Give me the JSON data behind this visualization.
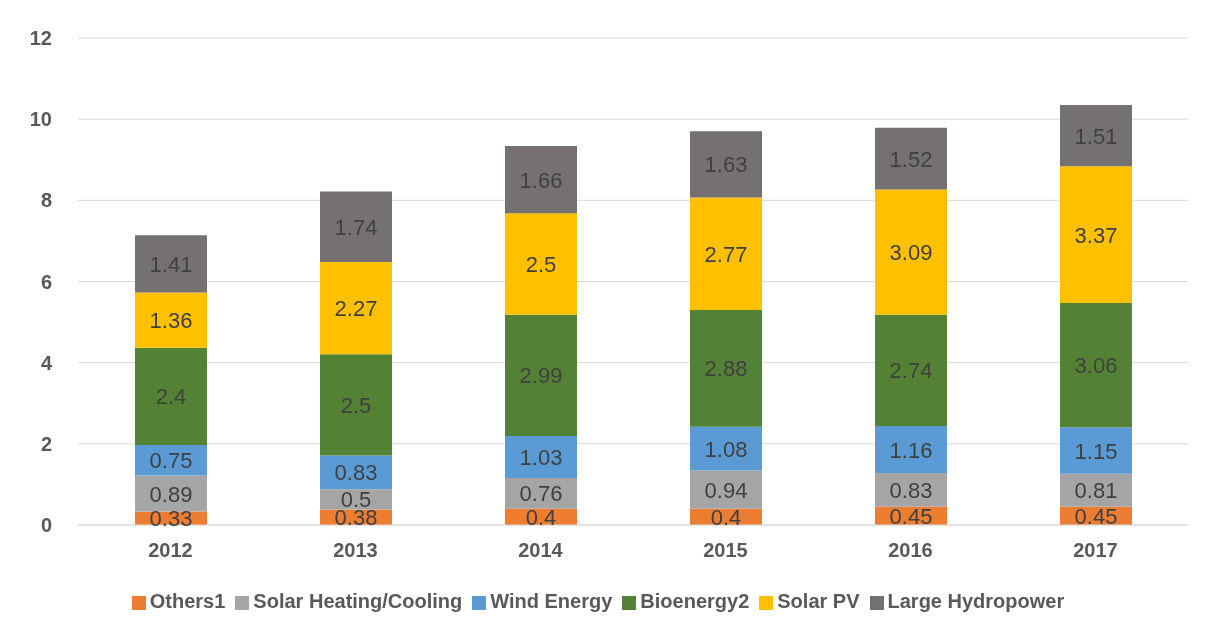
{
  "chart_data": {
    "type": "bar",
    "stacked": true,
    "categories": [
      "2012",
      "2013",
      "2014",
      "2015",
      "2016",
      "2017"
    ],
    "series": [
      {
        "name": "Others1",
        "color": "#ed7d31",
        "values": [
          0.33,
          0.38,
          0.4,
          0.4,
          0.45,
          0.45
        ]
      },
      {
        "name": "Solar Heating/Cooling",
        "color": "#a5a5a5",
        "values": [
          0.89,
          0.5,
          0.76,
          0.94,
          0.83,
          0.81
        ]
      },
      {
        "name": "Wind Energy",
        "color": "#5b9bd5",
        "values": [
          0.75,
          0.83,
          1.03,
          1.08,
          1.16,
          1.15
        ]
      },
      {
        "name": "Bioenergy2",
        "color": "#548235",
        "values": [
          2.4,
          2.5,
          2.99,
          2.88,
          2.74,
          3.06
        ]
      },
      {
        "name": "Solar PV",
        "color": "#ffc000",
        "values": [
          1.36,
          2.27,
          2.5,
          2.77,
          3.09,
          3.37
        ]
      },
      {
        "name": "Large Hydropower",
        "color": "#767171",
        "values": [
          1.41,
          1.74,
          1.66,
          1.63,
          1.52,
          1.51
        ]
      }
    ],
    "ylim": [
      0,
      12
    ],
    "yticks": [
      0,
      2,
      4,
      6,
      8,
      10,
      12
    ],
    "grid": "y",
    "legend": "bottom",
    "data_labels": true
  }
}
